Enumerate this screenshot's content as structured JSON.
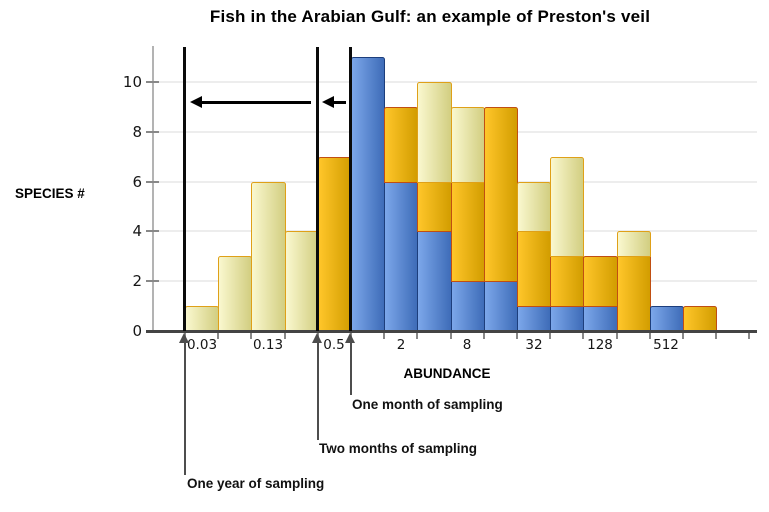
{
  "chart_data": {
    "type": "bar",
    "title": "Fish in the Arabian Gulf: an example of Preston's veil",
    "xlabel": "ABUNDANCE",
    "ylabel": "SPECIES #",
    "x_tick_labels": [
      "0.03",
      "0.13",
      "0.5",
      "2",
      "8",
      "32",
      "128",
      "512"
    ],
    "y_tick_labels": [
      "0",
      "2",
      "4",
      "6",
      "8",
      "10"
    ],
    "ylim": [
      0,
      11.5
    ],
    "x_scale": "log2 abundance octaves, 16 bars",
    "grid": "faint horizontal lines at even y values",
    "note": "Three overlaid histograms (Preston octave plot). visible_tops gives the top value (species count) of each colored layer visible in each of the 16 octave bars; null = layer not visible in that bar.",
    "series": [
      {
        "name": "One month of sampling",
        "color_key": "blue",
        "visible_tops": [
          null,
          null,
          null,
          null,
          null,
          11,
          6,
          4,
          2,
          2,
          1,
          1,
          1,
          null,
          1,
          null
        ]
      },
      {
        "name": "Two months of sampling",
        "color_key": "orange",
        "visible_tops": [
          null,
          null,
          null,
          null,
          7,
          null,
          9,
          6,
          6,
          9,
          4,
          3,
          3,
          3,
          null,
          1
        ]
      },
      {
        "name": "One year of sampling",
        "color_key": "yellow",
        "visible_tops": [
          1,
          3,
          6,
          4,
          null,
          null,
          null,
          10,
          9,
          null,
          6,
          7,
          null,
          4,
          null,
          null
        ]
      }
    ]
  },
  "colors": {
    "blue_light": "#7CA7EA",
    "blue_dark": "#3E6CB8",
    "blue_border": "#1D3E7C",
    "orange_light": "#FFC62A",
    "orange_dark": "#D29D00",
    "orange_border": "#C04E12",
    "yellow_light": "#FAF8CF",
    "yellow_dark": "#D2CE81",
    "yellow_border": "#DFA018",
    "veil_line": "#0B0B0B",
    "arrow": "#000000",
    "axis": "#444444",
    "tick": "#888888",
    "grid": "#EDEDED",
    "annotation_line": "#4D4D4D"
  }
}
